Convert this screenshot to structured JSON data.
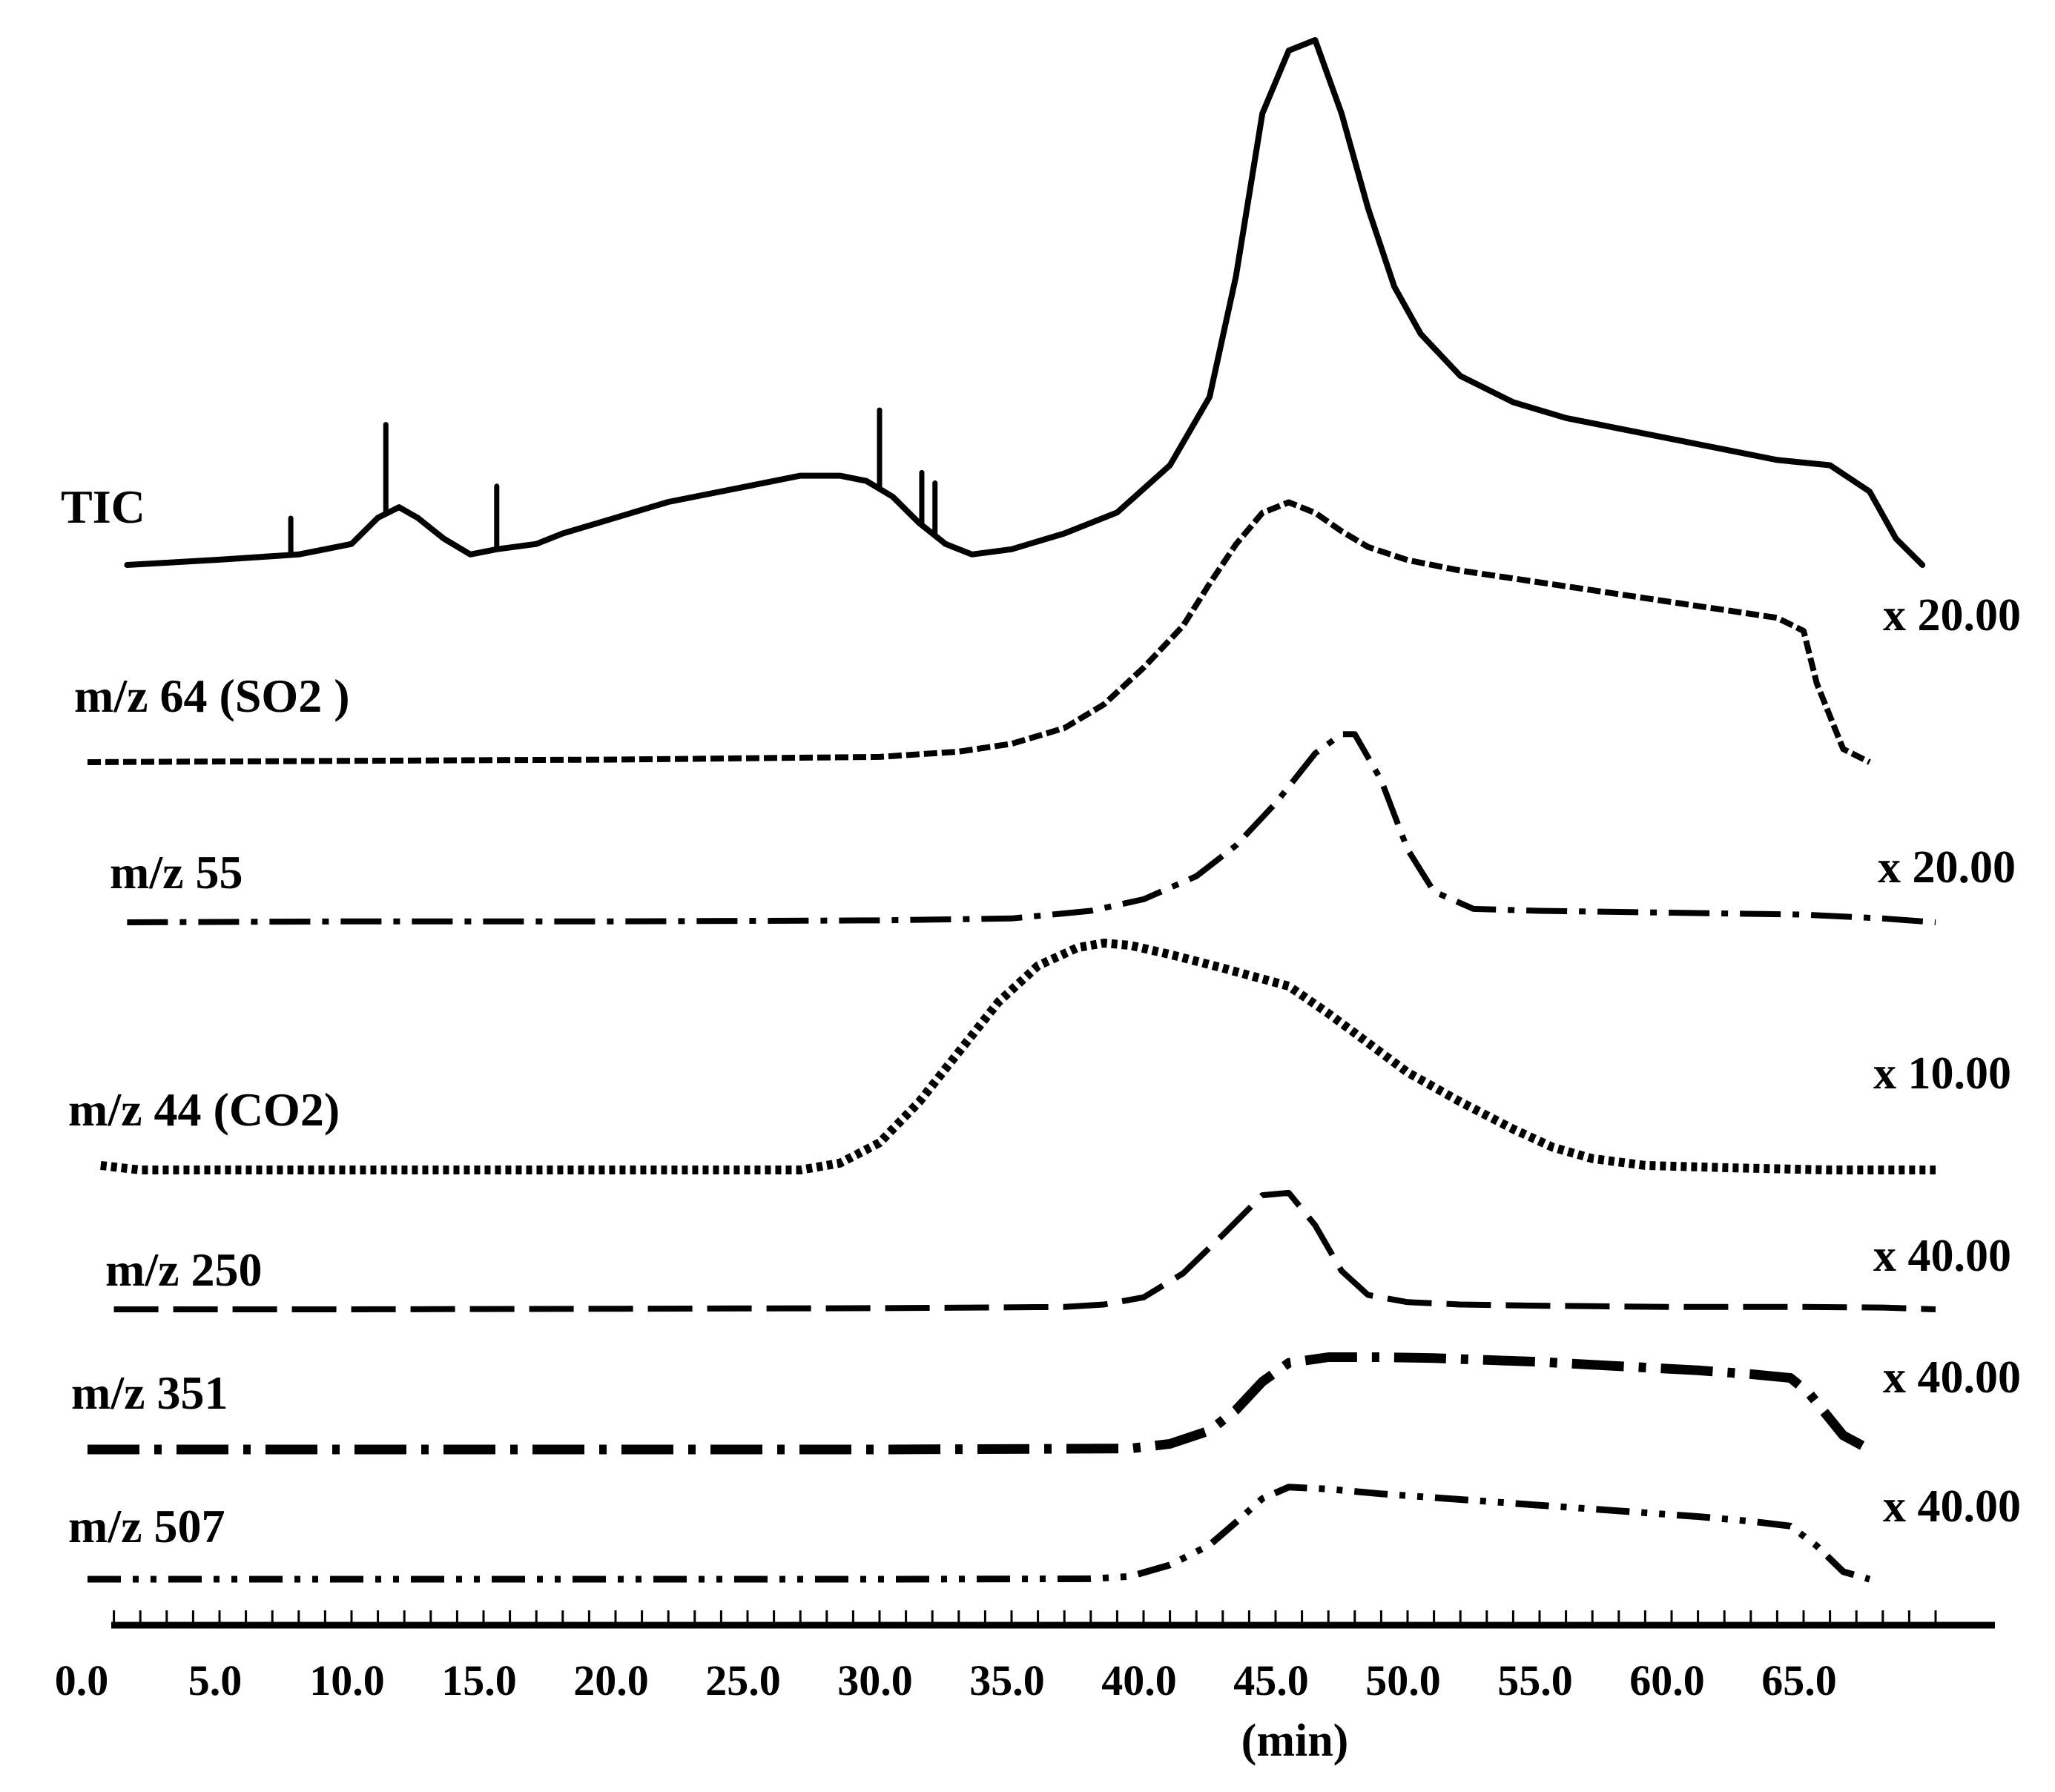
{
  "chart_data": {
    "type": "line",
    "title": "",
    "xlabel": "(min)",
    "ylabel": "",
    "xlim": [
      0,
      70
    ],
    "x_ticks": [
      "0.0",
      "5.0",
      "10.0",
      "15.0",
      "20.0",
      "25.0",
      "30.0",
      "35.0",
      "40.0",
      "45.0",
      "50.0",
      "55.0",
      "60.0",
      "65.0"
    ],
    "series": [
      {
        "name": "TIC",
        "scale": "",
        "style": "solid",
        "x": [
          1.5,
          5,
          8,
          9,
          10,
          11,
          11.8,
          12.5,
          13.5,
          14.5,
          15.5,
          17,
          18,
          20,
          22,
          25,
          27,
          28.5,
          29.5,
          30.5,
          31.5,
          32.5,
          33.5,
          35,
          37,
          39,
          41,
          42.5,
          43.5,
          44.5,
          45.5,
          46.5,
          47.5,
          48.5,
          49.5,
          50.5,
          52,
          54,
          56,
          58,
          60,
          62,
          64,
          66,
          67.5,
          68.5,
          69.5
        ],
        "y": [
          0,
          0.01,
          0.02,
          0.03,
          0.04,
          0.09,
          0.11,
          0.09,
          0.05,
          0.02,
          0.03,
          0.04,
          0.06,
          0.09,
          0.12,
          0.15,
          0.17,
          0.17,
          0.16,
          0.13,
          0.08,
          0.04,
          0.02,
          0.03,
          0.06,
          0.1,
          0.19,
          0.32,
          0.55,
          0.86,
          0.98,
          1.0,
          0.86,
          0.68,
          0.53,
          0.44,
          0.36,
          0.31,
          0.28,
          0.26,
          0.24,
          0.22,
          0.2,
          0.19,
          0.14,
          0.05,
          0.0
        ],
        "spikes": [
          [
            7.7,
            0.07
          ],
          [
            11.3,
            0.17
          ],
          [
            15.5,
            0.12
          ],
          [
            30,
            0.15
          ],
          [
            31.6,
            0.1
          ],
          [
            32.1,
            0.1
          ]
        ]
      },
      {
        "name": "m/z 64 (SO2 )",
        "scale": "x 20.00",
        "style": "dashed",
        "x": [
          0,
          10,
          20,
          30,
          33,
          35,
          37,
          38.5,
          40,
          41.5,
          42.5,
          43.5,
          44.5,
          45.5,
          46.5,
          47.5,
          48.5,
          50,
          52,
          54,
          56,
          58,
          60,
          62,
          64,
          65,
          65.5,
          66.5,
          67.5
        ],
        "y": [
          0,
          0.005,
          0.01,
          0.02,
          0.04,
          0.07,
          0.13,
          0.22,
          0.36,
          0.52,
          0.68,
          0.83,
          0.95,
          0.99,
          0.95,
          0.88,
          0.82,
          0.77,
          0.73,
          0.7,
          0.67,
          0.64,
          0.61,
          0.58,
          0.55,
          0.5,
          0.3,
          0.05,
          0.0
        ]
      },
      {
        "name": "m/z 55",
        "scale": "x 20.00",
        "style": "dash-dot",
        "x": [
          1.5,
          10,
          20,
          30,
          35,
          38,
          40,
          42,
          43.5,
          45,
          46.5,
          47.5,
          48,
          49,
          50,
          51,
          52.5,
          55,
          60,
          65,
          68,
          70
        ],
        "y": [
          0,
          0.005,
          0.005,
          0.01,
          0.02,
          0.06,
          0.12,
          0.24,
          0.4,
          0.62,
          0.88,
          0.98,
          0.98,
          0.74,
          0.38,
          0.16,
          0.07,
          0.06,
          0.05,
          0.04,
          0.02,
          0.0
        ]
      },
      {
        "name": "m/z 44 (CO2)",
        "scale": "x 10.00",
        "style": "dotted",
        "x": [
          0.5,
          2,
          10,
          20,
          27,
          28.5,
          30,
          31.5,
          33,
          34.5,
          36,
          37.5,
          38.5,
          39.5,
          41,
          43,
          45.5,
          47,
          48.5,
          50,
          52,
          54,
          55.5,
          57,
          59,
          62,
          66,
          70
        ],
        "y": [
          0.02,
          0,
          0,
          0,
          0,
          0.03,
          0.12,
          0.3,
          0.52,
          0.74,
          0.9,
          0.98,
          1.0,
          0.99,
          0.95,
          0.89,
          0.81,
          0.69,
          0.56,
          0.43,
          0.3,
          0.18,
          0.1,
          0.05,
          0.02,
          0.01,
          0,
          0
        ]
      },
      {
        "name": "m/z 250",
        "scale": "x 40.00",
        "style": "long-dash",
        "x": [
          1,
          10,
          20,
          30,
          37,
          38.5,
          40,
          41.5,
          43,
          44.5,
          45.5,
          46.5,
          47.5,
          48.5,
          50,
          52,
          55,
          60,
          65,
          68,
          70
        ],
        "y": [
          0,
          0,
          0.005,
          0.01,
          0.02,
          0.04,
          0.1,
          0.3,
          0.62,
          0.95,
          0.97,
          0.7,
          0.32,
          0.12,
          0.06,
          0.04,
          0.03,
          0.02,
          0.02,
          0.015,
          0.0
        ]
      },
      {
        "name": "m/z 351",
        "scale": "x 40.00",
        "style": "heavy-dash-dot",
        "x": [
          0,
          10,
          20,
          30,
          39.5,
          41,
          42.5,
          43.5,
          44.5,
          45.5,
          47,
          49,
          51,
          53,
          55,
          57,
          59,
          61,
          63,
          64.5,
          65.2,
          66.5,
          67.5
        ],
        "y": [
          0,
          0,
          0,
          0,
          0.01,
          0.06,
          0.2,
          0.42,
          0.72,
          0.92,
          0.98,
          0.98,
          0.97,
          0.95,
          0.93,
          0.9,
          0.87,
          0.84,
          0.8,
          0.76,
          0.6,
          0.15,
          0.0
        ]
      },
      {
        "name": "m/z 507",
        "scale": "x 40.00",
        "style": "dash-dot-dot",
        "x": [
          0,
          10,
          20,
          30,
          38,
          39.5,
          41,
          42.5,
          43.5,
          44.5,
          45.5,
          47,
          49,
          51,
          53,
          55,
          57,
          59,
          61,
          63,
          64.5,
          65.5,
          66.5,
          67.5
        ],
        "y": [
          0,
          0,
          0,
          0,
          0.005,
          0.03,
          0.15,
          0.36,
          0.6,
          0.85,
          0.97,
          0.95,
          0.9,
          0.86,
          0.82,
          0.78,
          0.74,
          0.7,
          0.66,
          0.61,
          0.56,
          0.35,
          0.08,
          0.0
        ]
      }
    ]
  }
}
